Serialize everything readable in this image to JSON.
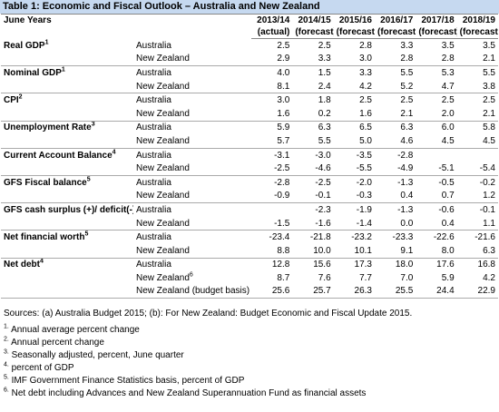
{
  "title": "Table 1:  Economic and Fiscal Outlook – Australia and New Zealand",
  "table": {
    "corner": "June Years",
    "columns": [
      {
        "year": "2013/14",
        "basis": "(actual)"
      },
      {
        "year": "2014/15",
        "basis": "(forecast)"
      },
      {
        "year": "2015/16",
        "basis": "(forecast)"
      },
      {
        "year": "2016/17",
        "basis": "(forecast)"
      },
      {
        "year": "2017/18",
        "basis": "(forecast)"
      },
      {
        "year": "2018/19",
        "basis": "(forecast)"
      }
    ],
    "groups": [
      {
        "label": "Real GDP",
        "note": "1",
        "rows": [
          {
            "country": "Australia",
            "values": [
              "2.5",
              "2.5",
              "2.8",
              "3.3",
              "3.5",
              "3.5"
            ]
          },
          {
            "country": "New Zealand",
            "values": [
              "2.9",
              "3.3",
              "3.0",
              "2.8",
              "2.8",
              "2.1"
            ]
          }
        ]
      },
      {
        "label": "Nominal GDP",
        "note": "1",
        "rows": [
          {
            "country": "Australia",
            "values": [
              "4.0",
              "1.5",
              "3.3",
              "5.5",
              "5.3",
              "5.5"
            ]
          },
          {
            "country": "New Zealand",
            "values": [
              "8.1",
              "2.4",
              "4.2",
              "5.2",
              "4.7",
              "3.8"
            ]
          }
        ]
      },
      {
        "label": "CPI",
        "note": "2",
        "rows": [
          {
            "country": "Australia",
            "values": [
              "3.0",
              "1.8",
              "2.5",
              "2.5",
              "2.5",
              "2.5"
            ]
          },
          {
            "country": "New Zealand",
            "values": [
              "1.6",
              "0.2",
              "1.6",
              "2.1",
              "2.0",
              "2.1"
            ]
          }
        ]
      },
      {
        "label": "Unemployment Rate",
        "note": "3",
        "rows": [
          {
            "country": "Australia",
            "values": [
              "5.9",
              "6.3",
              "6.5",
              "6.3",
              "6.0",
              "5.8"
            ]
          },
          {
            "country": "New Zealand",
            "values": [
              "5.7",
              "5.5",
              "5.0",
              "4.6",
              "4.5",
              "4.5"
            ]
          }
        ]
      },
      {
        "label": "Current Account Balance",
        "note": "4",
        "rows": [
          {
            "country": "Australia",
            "values": [
              "-3.1",
              "-3.0",
              "-3.5",
              "-2.8",
              null,
              null
            ]
          },
          {
            "country": "New Zealand",
            "values": [
              "-2.5",
              "-4.6",
              "-5.5",
              "-4.9",
              "-5.1",
              "-5.4"
            ]
          }
        ]
      },
      {
        "label": "GFS Fiscal balance",
        "note": "5",
        "rows": [
          {
            "country": "Australia",
            "values": [
              "-2.8",
              "-2.5",
              "-2.0",
              "-1.3",
              "-0.5",
              "-0.2"
            ]
          },
          {
            "country": "New Zealand",
            "values": [
              "-0.9",
              "-0.1",
              "-0.3",
              "0.4",
              "0.7",
              "1.2"
            ]
          }
        ]
      },
      {
        "label": "GFS cash surplus (+)/ deficit(-)",
        "note": "5",
        "rows": [
          {
            "country": "Australia",
            "values": [
              null,
              "-2.3",
              "-1.9",
              "-1.3",
              "-0.6",
              "-0.1"
            ]
          },
          {
            "country": "New Zealand",
            "values": [
              "-1.5",
              "-1.6",
              "-1.4",
              "0.0",
              "0.4",
              "1.1"
            ]
          }
        ]
      },
      {
        "label": "Net financial worth",
        "note": "5",
        "rows": [
          {
            "country": "Australia",
            "values": [
              "-23.4",
              "-21.8",
              "-23.2",
              "-23.3",
              "-22.6",
              "-21.6"
            ]
          },
          {
            "country": "New Zealand",
            "values": [
              "8.8",
              "10.0",
              "10.1",
              "9.1",
              "8.0",
              "6.3"
            ]
          }
        ]
      },
      {
        "label": "Net debt",
        "note": "4",
        "rows": [
          {
            "country": "Australia",
            "values": [
              "12.8",
              "15.6",
              "17.3",
              "18.0",
              "17.6",
              "16.8"
            ]
          },
          {
            "country": "New Zealand",
            "note": "6",
            "values": [
              "8.7",
              "7.6",
              "7.7",
              "7.0",
              "5.9",
              "4.2"
            ]
          },
          {
            "country": "New Zealand (budget basis)",
            "values": [
              "25.6",
              "25.7",
              "26.3",
              "25.5",
              "24.4",
              "22.9"
            ]
          }
        ]
      }
    ]
  },
  "sources": "Sources: (a) Australia Budget 2015; (b): For New Zealand: Budget Economic and Fiscal Update 2015.",
  "notes": [
    {
      "mark": "1.",
      "text": "Annual average percent change"
    },
    {
      "mark": "2.",
      "text": "Annual percent change"
    },
    {
      "mark": "3.",
      "text": "Seasonally adjusted, percent, June quarter"
    },
    {
      "mark": "4.",
      "text": "percent of GDP"
    },
    {
      "mark": "5.",
      "text": "IMF Government Finance Statistics basis, percent of GDP"
    },
    {
      "mark": "6.",
      "text": "Net debt including  Advances and New Zealand Superannuation Fund as financial assets"
    }
  ]
}
